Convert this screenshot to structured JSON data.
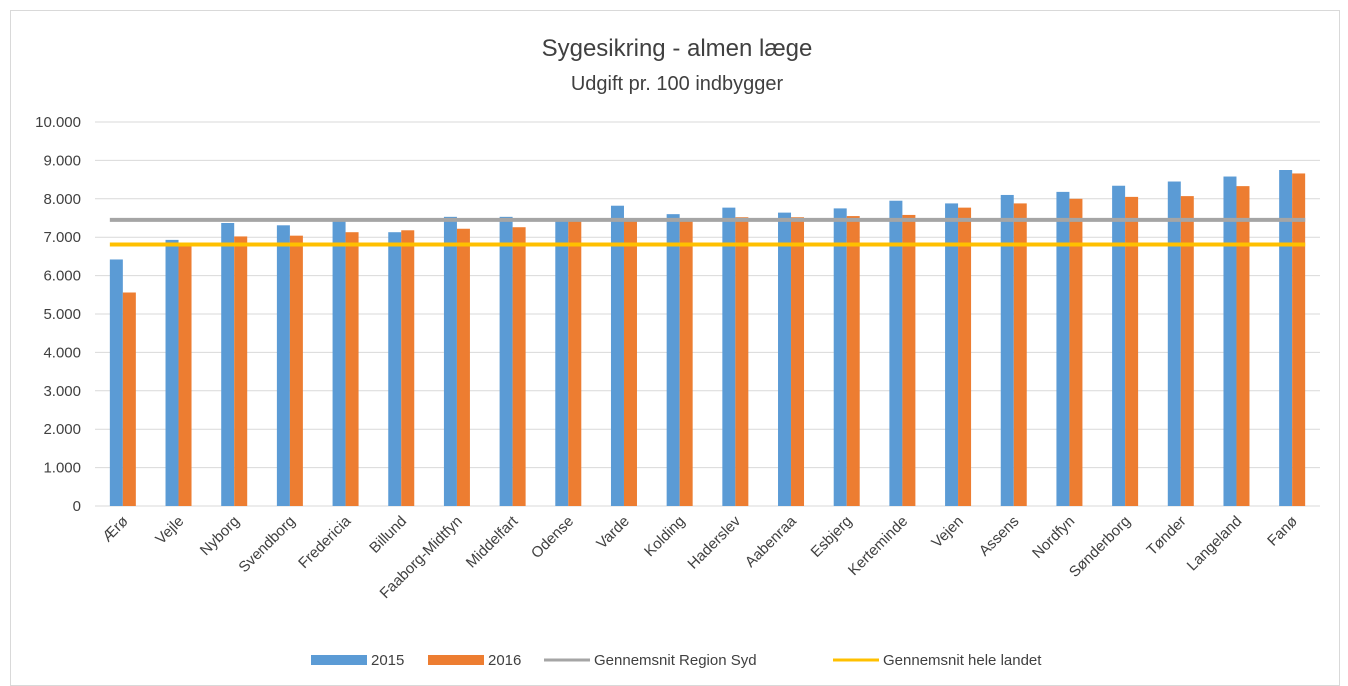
{
  "chart_data": {
    "type": "bar",
    "title": "Sygesikring - almen læge",
    "subtitle": "Udgift pr. 100 indbygger",
    "categories": [
      "Ærø",
      "Vejle",
      "Nyborg",
      "Svendborg",
      "Fredericia",
      "Billund",
      "Faaborg-Midtfyn",
      "Middelfart",
      "Odense",
      "Varde",
      "Kolding",
      "Haderslev",
      "Aabenraa",
      "Esbjerg",
      "Kerteminde",
      "Vejen",
      "Assens",
      "Nordfyn",
      "Sønderborg",
      "Tønder",
      "Langeland",
      "Fanø"
    ],
    "series": [
      {
        "name": "2015",
        "color": "#5b9bd5",
        "values": [
          6420,
          6930,
          7370,
          7310,
          7450,
          7130,
          7530,
          7530,
          7450,
          7820,
          7600,
          7770,
          7640,
          7750,
          7950,
          7880,
          8100,
          8180,
          8340,
          8450,
          8580,
          8750
        ]
      },
      {
        "name": "2016",
        "color": "#ed7d31",
        "values": [
          5560,
          6830,
          7020,
          7040,
          7130,
          7180,
          7220,
          7260,
          7420,
          7420,
          7450,
          7520,
          7520,
          7550,
          7580,
          7770,
          7880,
          8000,
          8050,
          8070,
          8330,
          8660
        ]
      }
    ],
    "reference_lines": [
      {
        "name": "Gennemsnit Region Syd",
        "color": "#a5a5a5",
        "value": 7450
      },
      {
        "name": "Gennemsnit hele landet",
        "color": "#ffc000",
        "value": 6810
      }
    ],
    "yticks": [
      "0",
      "1.000",
      "2.000",
      "3.000",
      "4.000",
      "5.000",
      "6.000",
      "7.000",
      "8.000",
      "9.000",
      "10.000"
    ],
    "ylim": [
      0,
      10000
    ],
    "grid": true,
    "legend_position": "bottom"
  }
}
